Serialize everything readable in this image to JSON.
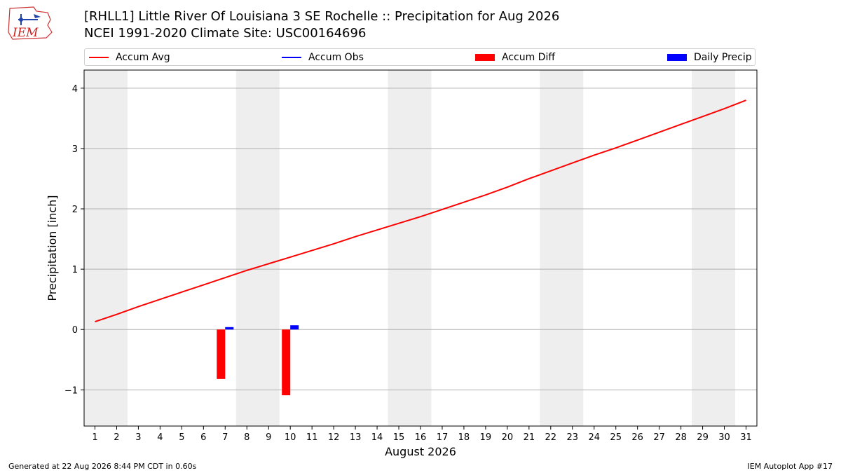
{
  "header": {
    "title_line1": "[RHLL1] Little River Of Louisiana 3 SE Rochelle :: Precipitation for Aug 2026",
    "title_line2": "NCEI 1991-2020 Climate Site: USC00164696",
    "logo_text": "IEM"
  },
  "legend": [
    {
      "label": "Accum Avg",
      "color": "#ff0000",
      "kind": "line"
    },
    {
      "label": "Accum Obs",
      "color": "#0000ff",
      "kind": "line"
    },
    {
      "label": "Accum Diff",
      "color": "#ff0000",
      "kind": "box"
    },
    {
      "label": "Daily Precip",
      "color": "#0000ff",
      "kind": "box"
    }
  ],
  "footer": {
    "left": "Generated at 22 Aug 2026 8:44 PM CDT in 0.60s",
    "right": "IEM Autoplot App #17"
  },
  "chart_data": {
    "type": "line",
    "xlabel": "August 2026",
    "ylabel": "Precipitation [inch]",
    "xlim": [
      0.5,
      31.5
    ],
    "ylim": [
      -1.6,
      4.3
    ],
    "yticks": [
      -1,
      0,
      1,
      2,
      3,
      4
    ],
    "ytick_labels": [
      "−1",
      "0",
      "1",
      "2",
      "3",
      "4"
    ],
    "x": [
      1,
      2,
      3,
      4,
      5,
      6,
      7,
      8,
      9,
      10,
      11,
      12,
      13,
      14,
      15,
      16,
      17,
      18,
      19,
      20,
      21,
      22,
      23,
      24,
      25,
      26,
      27,
      28,
      29,
      30,
      31
    ],
    "weekend_bands": [
      [
        0.5,
        2.5
      ],
      [
        7.5,
        9.5
      ],
      [
        14.5,
        16.5
      ],
      [
        21.5,
        23.5
      ],
      [
        28.5,
        30.5
      ]
    ],
    "grid": "horizontal",
    "series": [
      {
        "name": "Accum Avg",
        "type": "line",
        "color": "#ff0000",
        "values": [
          0.13,
          0.25,
          0.38,
          0.5,
          0.62,
          0.74,
          0.86,
          0.98,
          1.09,
          1.2,
          1.31,
          1.42,
          1.54,
          1.65,
          1.76,
          1.87,
          1.99,
          2.11,
          2.23,
          2.36,
          2.5,
          2.63,
          2.76,
          2.89,
          3.01,
          3.14,
          3.27,
          3.4,
          3.53,
          3.66,
          3.8
        ]
      },
      {
        "name": "Accum Diff",
        "type": "bar",
        "color": "#ff0000",
        "points": [
          {
            "x": 7,
            "y": -0.82
          },
          {
            "x": 10,
            "y": -1.09
          }
        ]
      },
      {
        "name": "Daily Precip",
        "type": "bar",
        "color": "#0000ff",
        "points": [
          {
            "x": 7,
            "y": 0.04
          },
          {
            "x": 10,
            "y": 0.07
          }
        ]
      }
    ]
  }
}
